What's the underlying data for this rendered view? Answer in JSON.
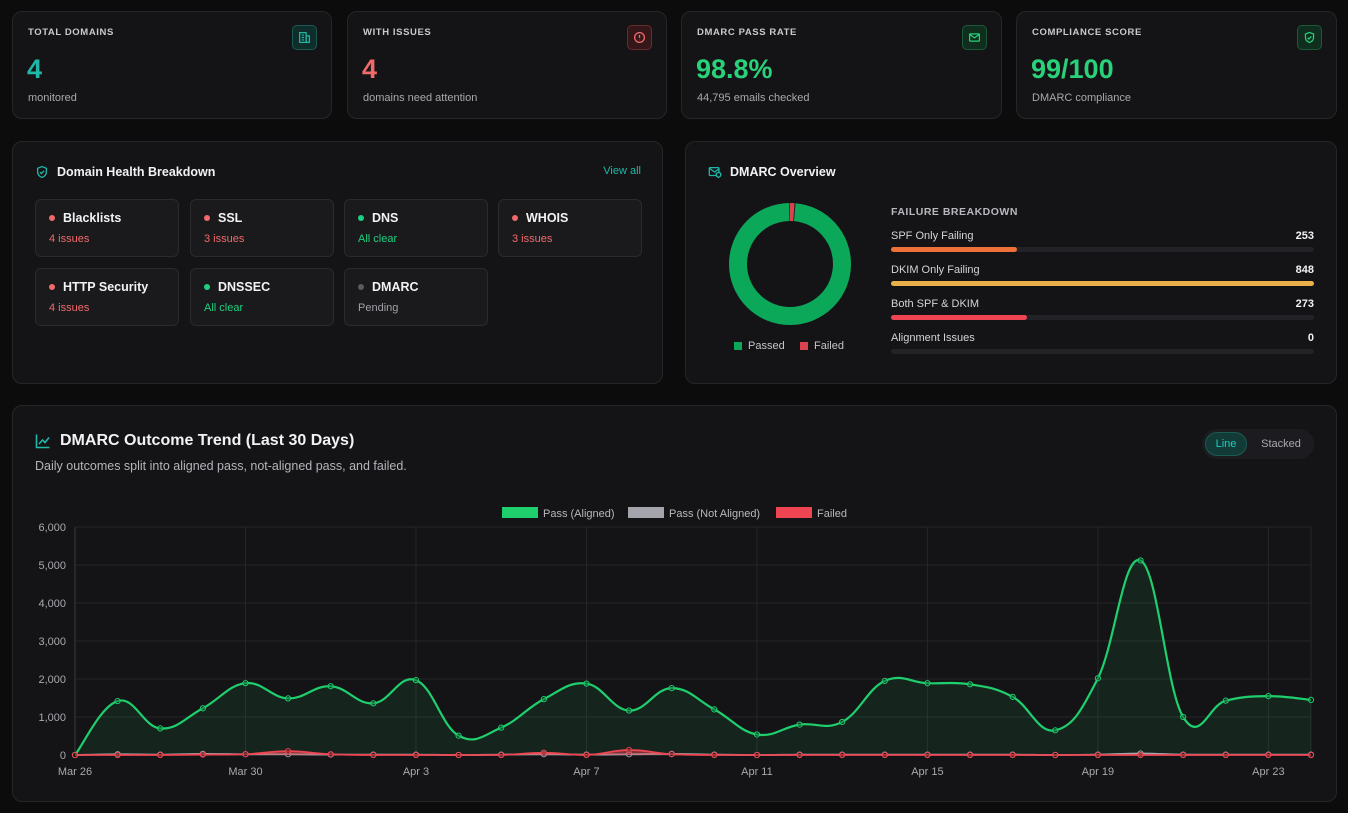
{
  "stats": [
    {
      "label": "TOTAL DOMAINS",
      "value": "4",
      "sub": "monitored",
      "icon": "building-icon",
      "color": "#1fb8a8"
    },
    {
      "label": "WITH ISSUES",
      "value": "4",
      "sub": "domains need attention",
      "icon": "alert-circle-icon",
      "color": "#f06a6a"
    },
    {
      "label": "DMARC PASS RATE",
      "value": "98.8%",
      "sub": "44,795 emails checked",
      "icon": "mail-icon",
      "color": "#29d17a"
    },
    {
      "label": "COMPLIANCE SCORE",
      "value": "99/100",
      "sub": "DMARC compliance",
      "icon": "shield-check-icon",
      "color": "#29d17a"
    }
  ],
  "health": {
    "title": "Domain Health Breakdown",
    "view_all": "View all",
    "tiles": [
      {
        "name": "Blacklists",
        "status": "4 issues",
        "state": "bad"
      },
      {
        "name": "SSL",
        "status": "3 issues",
        "state": "bad"
      },
      {
        "name": "DNS",
        "status": "All clear",
        "state": "good"
      },
      {
        "name": "WHOIS",
        "status": "3 issues",
        "state": "bad"
      },
      {
        "name": "HTTP Security",
        "status": "4 issues",
        "state": "bad"
      },
      {
        "name": "DNSSEC",
        "status": "All clear",
        "state": "good"
      },
      {
        "name": "DMARC",
        "status": "Pending",
        "state": "pending"
      }
    ]
  },
  "dmarc": {
    "title": "DMARC Overview",
    "donut": {
      "passed": 98.8,
      "failed": 1.2
    },
    "legend": {
      "passed": "Passed",
      "failed": "Failed"
    },
    "failure_title": "FAILURE BREAKDOWN",
    "failures": [
      {
        "label": "SPF Only Failing",
        "value": "253",
        "count": 253,
        "color": "#f0703a"
      },
      {
        "label": "DKIM Only Failing",
        "value": "848",
        "count": 848,
        "color": "#eab04a"
      },
      {
        "label": "Both SPF & DKIM",
        "value": "273",
        "count": 273,
        "color": "#ef4451"
      },
      {
        "label": "Alignment Issues",
        "value": "0",
        "count": 0,
        "color": "#8a8a90"
      }
    ]
  },
  "trend": {
    "title": "DMARC Outcome Trend (Last 30 Days)",
    "subtitle": "Daily outcomes split into aligned pass, not-aligned pass, and failed.",
    "toggle": {
      "line": "Line",
      "stacked": "Stacked"
    }
  },
  "chart_data": {
    "type": "line",
    "x": [
      "Mar 26",
      "Mar 27",
      "Mar 28",
      "Mar 29",
      "Mar 30",
      "Mar 31",
      "Apr 1",
      "Apr 2",
      "Apr 3",
      "Apr 4",
      "Apr 5",
      "Apr 6",
      "Apr 7",
      "Apr 8",
      "Apr 9",
      "Apr 10",
      "Apr 11",
      "Apr 12",
      "Apr 13",
      "Apr 14",
      "Apr 15",
      "Apr 16",
      "Apr 17",
      "Apr 18",
      "Apr 19",
      "Apr 20",
      "Apr 21",
      "Apr 22",
      "Apr 23",
      "Apr 24"
    ],
    "tick_labels": [
      "Mar 26",
      "Mar 30",
      "Apr 3",
      "Apr 7",
      "Apr 11",
      "Apr 15",
      "Apr 19",
      "Apr 23"
    ],
    "y_ticks": [
      "0",
      "1,000",
      "2,000",
      "3,000",
      "4,000",
      "5,000",
      "6,000"
    ],
    "ylim": [
      0,
      6000
    ],
    "series": [
      {
        "name": "Pass (Aligned)",
        "color": "#1fcf6e",
        "values": [
          0,
          1420,
          700,
          1230,
          1890,
          1490,
          1810,
          1360,
          1970,
          510,
          720,
          1470,
          1880,
          1170,
          1760,
          1200,
          540,
          800,
          870,
          1950,
          1890,
          1860,
          1530,
          650,
          2020,
          5120,
          1000,
          1430,
          1550,
          1450
        ]
      },
      {
        "name": "Pass (Not Aligned)",
        "color": "#a4a4ac",
        "values": [
          0,
          20,
          10,
          30,
          20,
          20,
          10,
          10,
          10,
          0,
          10,
          20,
          10,
          20,
          30,
          10,
          0,
          10,
          10,
          10,
          10,
          10,
          10,
          0,
          10,
          40,
          10,
          10,
          10,
          10
        ]
      },
      {
        "name": "Failed",
        "color": "#ef4451",
        "values": [
          0,
          0,
          0,
          10,
          20,
          100,
          20,
          0,
          0,
          0,
          0,
          60,
          0,
          130,
          20,
          0,
          0,
          0,
          0,
          0,
          0,
          0,
          0,
          0,
          0,
          0,
          0,
          0,
          0,
          0
        ]
      }
    ],
    "legend_position": "top-center",
    "grid": true
  }
}
